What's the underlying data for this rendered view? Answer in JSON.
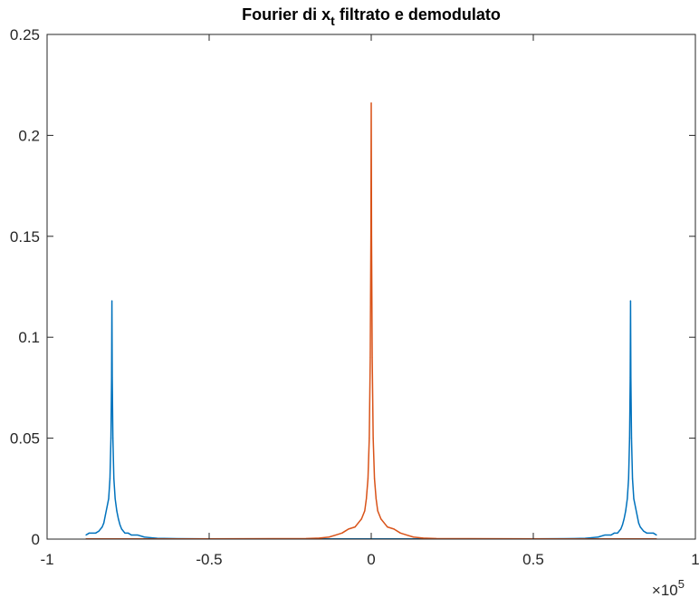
{
  "chart_data": {
    "type": "line",
    "title": {
      "main": "Fourier di x",
      "subscript": "t",
      "rest": " filtrato e demodulato"
    },
    "xlabel": "",
    "ylabel": "",
    "xlim": [
      -1,
      1
    ],
    "ylim": [
      0,
      0.25
    ],
    "x_ticks": [
      -1,
      -0.5,
      0,
      0.5,
      1
    ],
    "x_tick_labels": [
      "-1",
      "-0.5",
      "0",
      "0.5",
      "1"
    ],
    "y_ticks": [
      0,
      0.05,
      0.1,
      0.15,
      0.2,
      0.25
    ],
    "y_tick_labels": [
      "0",
      "0.05",
      "0.1",
      "0.15",
      "0.2",
      "0.25"
    ],
    "x_exponent": {
      "base": "×10",
      "power": "5"
    },
    "grid": false,
    "box": true,
    "series": [
      {
        "color": "#0072BD",
        "x": [
          -0.88,
          -0.87,
          -0.85,
          -0.84,
          -0.83,
          -0.825,
          -0.82,
          -0.815,
          -0.81,
          -0.806,
          -0.803,
          -0.801,
          -0.8,
          -0.799,
          -0.797,
          -0.794,
          -0.79,
          -0.785,
          -0.78,
          -0.775,
          -0.77,
          -0.76,
          -0.75,
          -0.74,
          -0.72,
          -0.7,
          -0.68,
          -0.66,
          -0.6,
          -0.5,
          -0.4,
          -0.3,
          -0.2,
          -0.1,
          0,
          0.1,
          0.2,
          0.3,
          0.4,
          0.5,
          0.6,
          0.66,
          0.68,
          0.7,
          0.72,
          0.74,
          0.75,
          0.76,
          0.77,
          0.775,
          0.78,
          0.785,
          0.79,
          0.794,
          0.797,
          0.799,
          0.8,
          0.801,
          0.803,
          0.806,
          0.81,
          0.815,
          0.82,
          0.825,
          0.83,
          0.84,
          0.85,
          0.87,
          0.88
        ],
        "y": [
          0.002,
          0.003,
          0.003,
          0.004,
          0.006,
          0.008,
          0.012,
          0.016,
          0.02,
          0.03,
          0.05,
          0.08,
          0.118,
          0.08,
          0.05,
          0.03,
          0.02,
          0.014,
          0.01,
          0.007,
          0.005,
          0.003,
          0.003,
          0.002,
          0.002,
          0.001,
          0.0007,
          0.0004,
          0.0002,
          0.0001,
          0.0001,
          0.0001,
          0.0001,
          0.0001,
          0.0001,
          0.0001,
          0.0001,
          0.0001,
          0.0001,
          0.0001,
          0.0002,
          0.0004,
          0.0007,
          0.001,
          0.002,
          0.002,
          0.003,
          0.003,
          0.005,
          0.007,
          0.01,
          0.014,
          0.02,
          0.03,
          0.05,
          0.08,
          0.118,
          0.08,
          0.05,
          0.03,
          0.02,
          0.016,
          0.012,
          0.008,
          0.006,
          0.004,
          0.003,
          0.003,
          0.002
        ]
      },
      {
        "color": "#D95319",
        "x": [
          -0.88,
          -0.6,
          -0.3,
          -0.2,
          -0.16,
          -0.13,
          -0.11,
          -0.09,
          -0.07,
          -0.05,
          -0.04,
          -0.03,
          -0.02,
          -0.015,
          -0.01,
          -0.006,
          -0.003,
          -0.001,
          0,
          0.001,
          0.003,
          0.006,
          0.01,
          0.015,
          0.02,
          0.03,
          0.04,
          0.05,
          0.07,
          0.09,
          0.11,
          0.13,
          0.16,
          0.2,
          0.3,
          0.6,
          0.88
        ],
        "y": [
          0.0001,
          0.0001,
          0.0002,
          0.0003,
          0.0005,
          0.001,
          0.002,
          0.003,
          0.005,
          0.006,
          0.008,
          0.01,
          0.014,
          0.02,
          0.03,
          0.05,
          0.09,
          0.15,
          0.216,
          0.15,
          0.09,
          0.05,
          0.03,
          0.02,
          0.014,
          0.01,
          0.008,
          0.006,
          0.005,
          0.003,
          0.002,
          0.001,
          0.0005,
          0.0003,
          0.0002,
          0.0001,
          0.0001
        ]
      }
    ]
  }
}
